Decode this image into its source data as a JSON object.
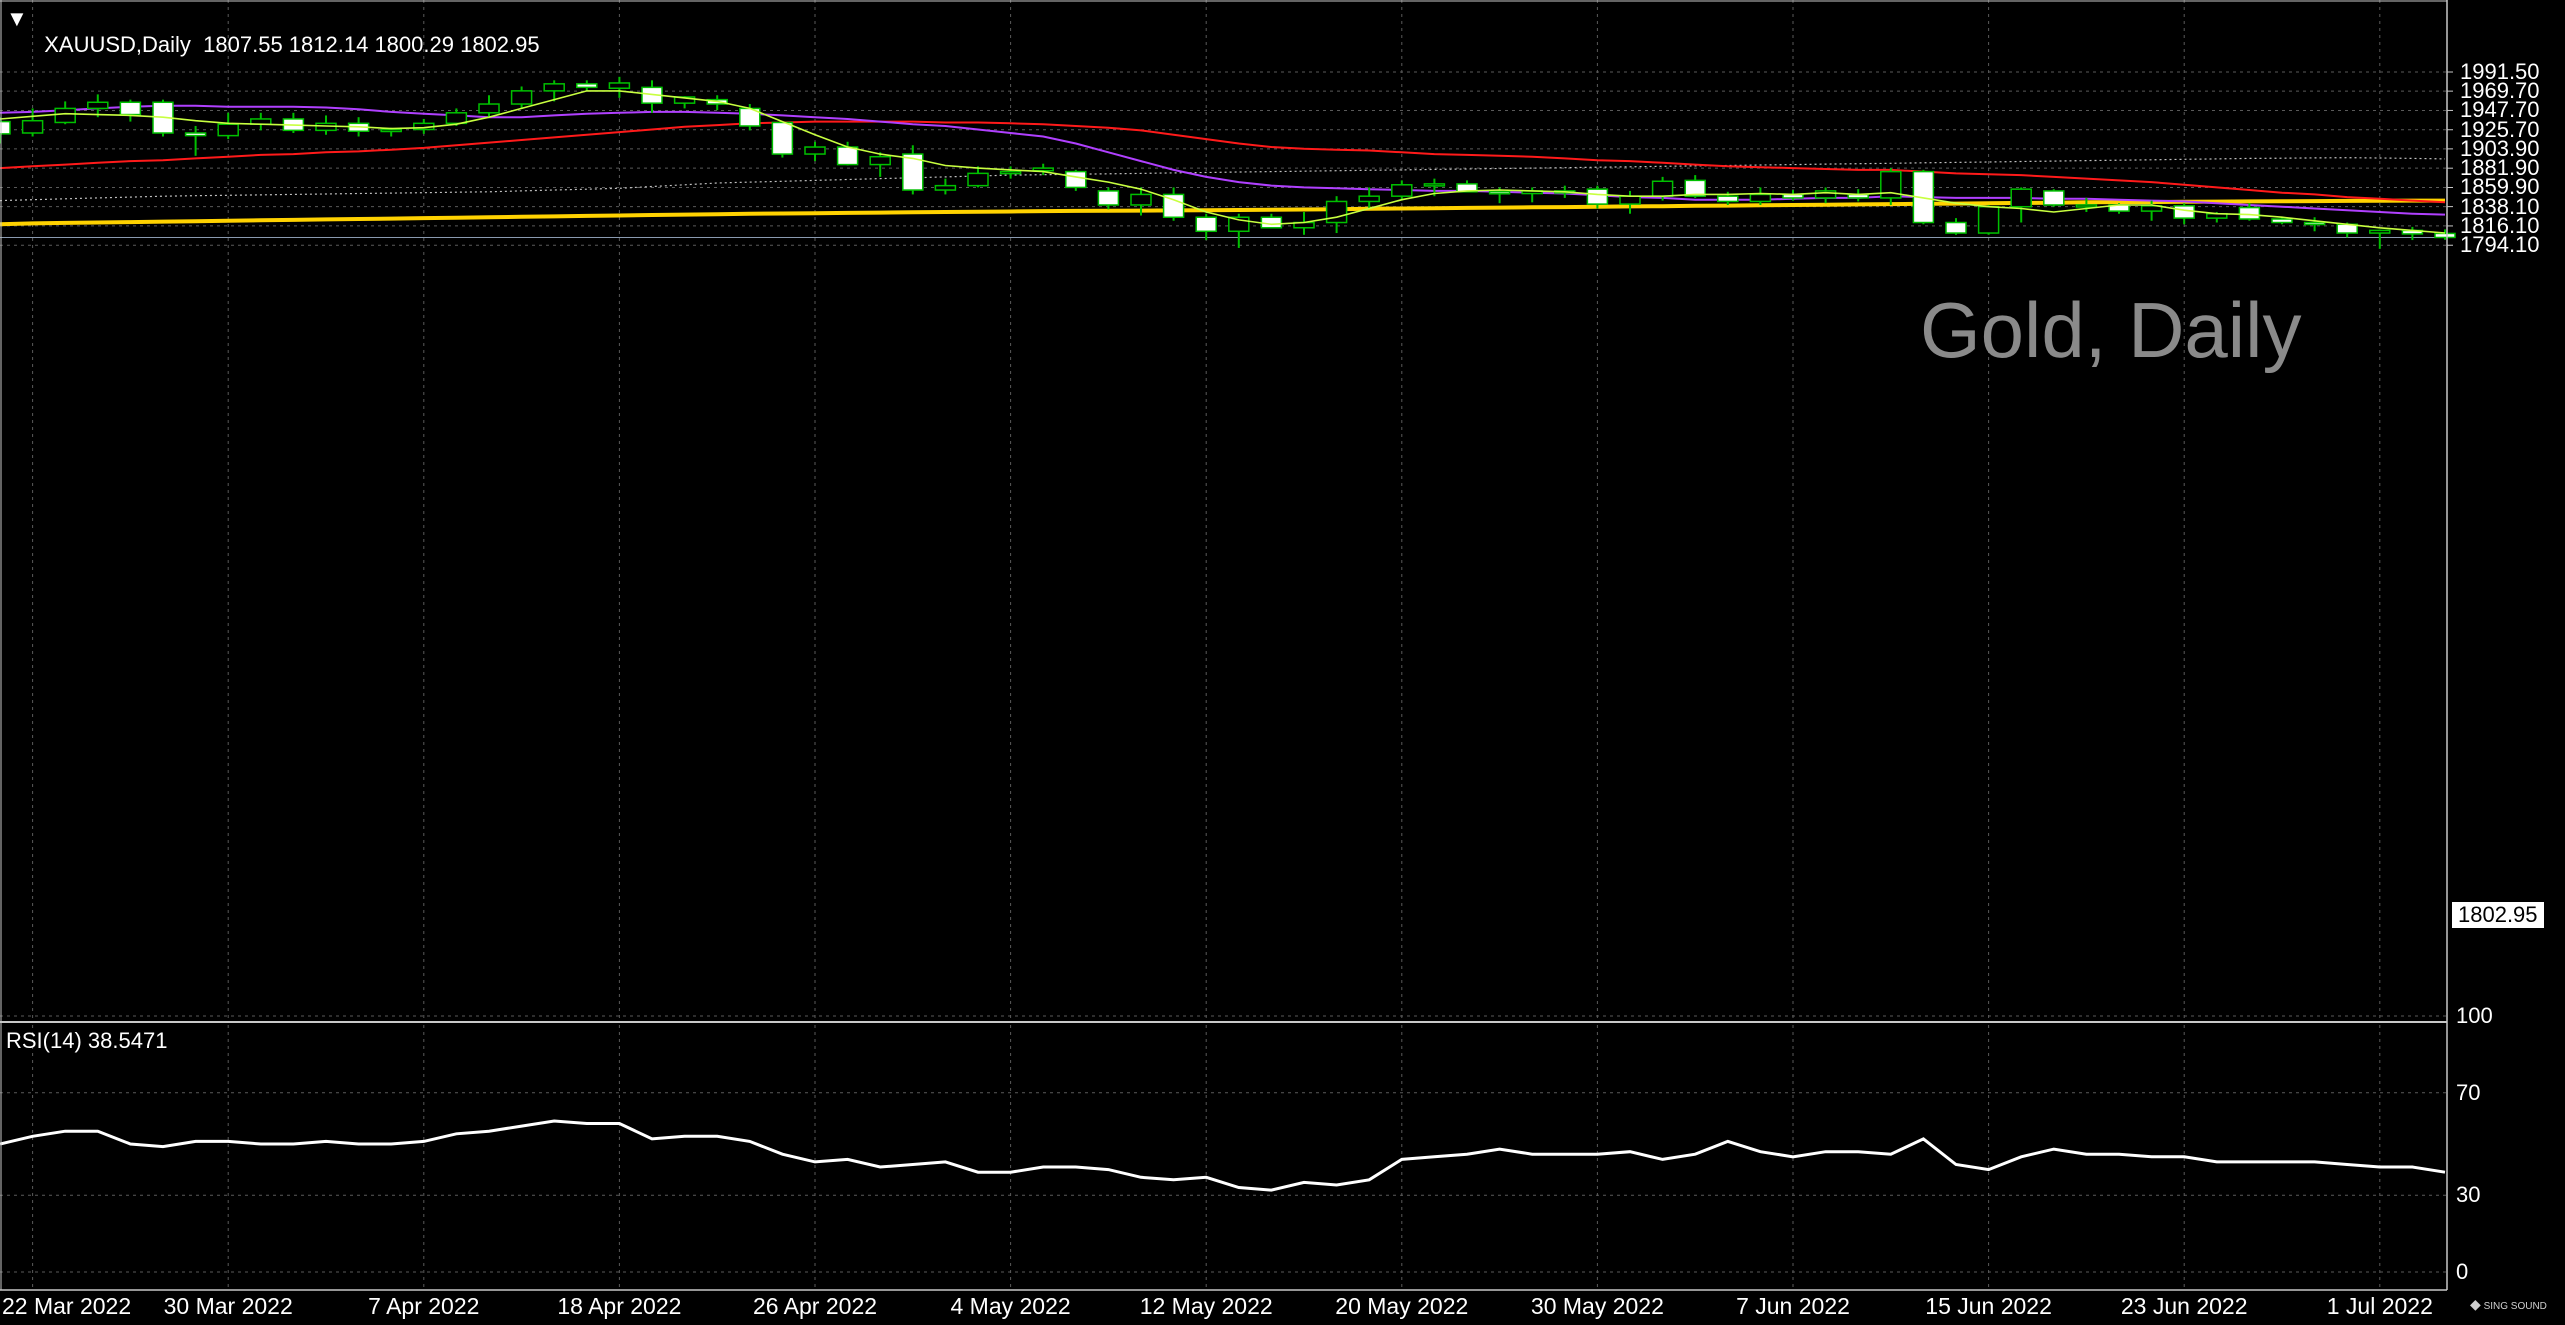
{
  "header": {
    "symbol": "XAUUSD,Daily",
    "ohlc": "1807.55 1812.14 1800.29 1802.95"
  },
  "watermark": "Gold, Daily",
  "rsi_header": "RSI(14) 38.5471",
  "last_price_label": "1802.95",
  "logo_text": "SING SOUND",
  "colors": {
    "background": "#000000",
    "grid": "#5a5a5a",
    "bull_candle": "#00c000",
    "bear_candle": "#ffffff",
    "ma_fast": "#c8ff40",
    "ma_mid": "#b040ff",
    "ma_slow": "#ff1a1a",
    "ma_long": "#ffd200",
    "ma_dotted": "#c0c0c0",
    "rsi": "#ffffff"
  },
  "chart_data": [
    {
      "type": "candlestick",
      "title": "XAUUSD,Daily",
      "y_ticks": [
        "1991.50",
        "1969.70",
        "1947.70",
        "1925.70",
        "1903.90",
        "1881.90",
        "1859.90",
        "1838.10",
        "1816.10",
        "1794.10"
      ],
      "x_ticks": [
        {
          "label": "22 Mar 2022",
          "bar": 1
        },
        {
          "label": "30 Mar 2022",
          "bar": 7
        },
        {
          "label": "7 Apr 2022",
          "bar": 13
        },
        {
          "label": "18 Apr 2022",
          "bar": 19
        },
        {
          "label": "26 Apr 2022",
          "bar": 25
        },
        {
          "label": "4 May 2022",
          "bar": 31
        },
        {
          "label": "12 May 2022",
          "bar": 37
        },
        {
          "label": "20 May 2022",
          "bar": 43
        },
        {
          "label": "30 May 2022",
          "bar": 49
        },
        {
          "label": "7 Jun 2022",
          "bar": 55
        },
        {
          "label": "15 Jun 2022",
          "bar": 61
        },
        {
          "label": "23 Jun 2022",
          "bar": 67
        },
        {
          "label": "1 Jul 2022",
          "bar": 73
        }
      ],
      "ohlc": [
        [
          1935,
          1940,
          1910,
          1921
        ],
        [
          1922,
          1950,
          1918,
          1936
        ],
        [
          1934,
          1958,
          1932,
          1950
        ],
        [
          1950,
          1966,
          1940,
          1957
        ],
        [
          1957,
          1960,
          1935,
          1943
        ],
        [
          1957,
          1960,
          1918,
          1922
        ],
        [
          1922,
          1930,
          1896,
          1919
        ],
        [
          1919,
          1945,
          1915,
          1932
        ],
        [
          1932,
          1945,
          1925,
          1938
        ],
        [
          1938,
          1945,
          1922,
          1925
        ],
        [
          1925,
          1942,
          1920,
          1933
        ],
        [
          1933,
          1940,
          1918,
          1924
        ],
        [
          1924,
          1928,
          1918,
          1926
        ],
        [
          1926,
          1938,
          1921,
          1933
        ],
        [
          1933,
          1950,
          1930,
          1945
        ],
        [
          1945,
          1965,
          1940,
          1955
        ],
        [
          1955,
          1975,
          1950,
          1970
        ],
        [
          1970,
          1982,
          1958,
          1978
        ],
        [
          1978,
          1982,
          1970,
          1974
        ],
        [
          1973,
          1986,
          1962,
          1979
        ],
        [
          1974,
          1982,
          1945,
          1956
        ],
        [
          1956,
          1964,
          1950,
          1963
        ],
        [
          1960,
          1965,
          1948,
          1955
        ],
        [
          1950,
          1955,
          1925,
          1930
        ],
        [
          1934,
          1935,
          1894,
          1898
        ],
        [
          1898,
          1912,
          1890,
          1906
        ],
        [
          1906,
          1912,
          1885,
          1886
        ],
        [
          1886,
          1900,
          1872,
          1895
        ],
        [
          1898,
          1908,
          1852,
          1857
        ],
        [
          1857,
          1870,
          1852,
          1862
        ],
        [
          1862,
          1884,
          1860,
          1876
        ],
        [
          1876,
          1884,
          1870,
          1878
        ],
        [
          1879,
          1887,
          1874,
          1882
        ],
        [
          1878,
          1880,
          1856,
          1860
        ],
        [
          1856,
          1860,
          1835,
          1840
        ],
        [
          1840,
          1860,
          1828,
          1852
        ],
        [
          1852,
          1860,
          1822,
          1826
        ],
        [
          1826,
          1830,
          1800,
          1810
        ],
        [
          1810,
          1830,
          1791,
          1826
        ],
        [
          1826,
          1830,
          1814,
          1814
        ],
        [
          1814,
          1832,
          1806,
          1820
        ],
        [
          1820,
          1850,
          1808,
          1844
        ],
        [
          1844,
          1860,
          1836,
          1850
        ],
        [
          1850,
          1868,
          1845,
          1863
        ],
        [
          1863,
          1870,
          1850,
          1864
        ],
        [
          1864,
          1868,
          1855,
          1855
        ],
        [
          1855,
          1860,
          1842,
          1853
        ],
        [
          1853,
          1860,
          1843,
          1856
        ],
        [
          1856,
          1862,
          1848,
          1855
        ],
        [
          1858,
          1862,
          1836,
          1841
        ],
        [
          1841,
          1856,
          1830,
          1850
        ],
        [
          1850,
          1872,
          1845,
          1867
        ],
        [
          1868,
          1874,
          1848,
          1850
        ],
        [
          1850,
          1855,
          1840,
          1844
        ],
        [
          1844,
          1860,
          1840,
          1852
        ],
        [
          1852,
          1857,
          1845,
          1848
        ],
        [
          1848,
          1860,
          1842,
          1856
        ],
        [
          1852,
          1858,
          1844,
          1848
        ],
        [
          1848,
          1882,
          1840,
          1878
        ],
        [
          1878,
          1880,
          1818,
          1820
        ],
        [
          1820,
          1825,
          1806,
          1808
        ],
        [
          1808,
          1840,
          1806,
          1838
        ],
        [
          1838,
          1860,
          1820,
          1858
        ],
        [
          1856,
          1858,
          1838,
          1840
        ],
        [
          1838,
          1848,
          1832,
          1840
        ],
        [
          1840,
          1842,
          1830,
          1833
        ],
        [
          1833,
          1845,
          1822,
          1839
        ],
        [
          1839,
          1842,
          1818,
          1825
        ],
        [
          1825,
          1832,
          1820,
          1830
        ],
        [
          1837,
          1842,
          1822,
          1824
        ],
        [
          1824,
          1826,
          1818,
          1820
        ],
        [
          1820,
          1826,
          1810,
          1818
        ],
        [
          1818,
          1820,
          1803,
          1808
        ],
        [
          1808,
          1812,
          1790,
          1811
        ],
        [
          1811,
          1815,
          1800,
          1807
        ],
        [
          1807.55,
          1812.14,
          1800.29,
          1802.95
        ]
      ],
      "ma_fast": [
        1938,
        1941,
        1944,
        1943,
        1942,
        1940,
        1936,
        1933,
        1932,
        1931,
        1930,
        1929,
        1927,
        1928,
        1932,
        1940,
        1950,
        1960,
        1970,
        1970,
        1966,
        1962,
        1958,
        1950,
        1935,
        1920,
        1906,
        1898,
        1893,
        1885,
        1882,
        1880,
        1878,
        1872,
        1866,
        1858,
        1846,
        1832,
        1823,
        1818,
        1820,
        1826,
        1836,
        1846,
        1853,
        1856,
        1857,
        1856,
        1855,
        1852,
        1850,
        1850,
        1852,
        1852,
        1853,
        1852,
        1854,
        1852,
        1854,
        1848,
        1842,
        1838,
        1836,
        1832,
        1836,
        1840,
        1840,
        1834,
        1830,
        1829,
        1826,
        1822,
        1818,
        1814,
        1811,
        1808
      ],
      "ma_mid": [
        1945,
        1946,
        1948,
        1950,
        1952,
        1953,
        1953,
        1952,
        1952,
        1952,
        1951,
        1949,
        1946,
        1944,
        1942,
        1940,
        1940,
        1942,
        1944,
        1945,
        1946,
        1946,
        1945,
        1944,
        1942,
        1940,
        1938,
        1935,
        1932,
        1930,
        1926,
        1922,
        1918,
        1910,
        1900,
        1890,
        1880,
        1872,
        1866,
        1862,
        1860,
        1859,
        1858,
        1857,
        1856,
        1856,
        1855,
        1854,
        1853,
        1851,
        1849,
        1848,
        1846,
        1846,
        1846,
        1847,
        1848,
        1848,
        1850,
        1849,
        1848,
        1848,
        1848,
        1847,
        1847,
        1846,
        1845,
        1844,
        1842,
        1840,
        1838,
        1836,
        1834,
        1832,
        1830,
        1829
      ],
      "ma_slow": [
        1882,
        1884,
        1886,
        1888,
        1890,
        1891,
        1893,
        1895,
        1897,
        1898,
        1900,
        1901,
        1903,
        1905,
        1908,
        1911,
        1914,
        1917,
        1920,
        1923,
        1926,
        1929,
        1931,
        1933,
        1934,
        1935,
        1935,
        1935,
        1935,
        1934,
        1934,
        1933,
        1932,
        1930,
        1928,
        1925,
        1920,
        1915,
        1910,
        1906,
        1904,
        1903,
        1902,
        1900,
        1898,
        1897,
        1896,
        1895,
        1893,
        1891,
        1890,
        1888,
        1886,
        1884,
        1883,
        1882,
        1881,
        1880,
        1880,
        1878,
        1876,
        1875,
        1874,
        1872,
        1870,
        1868,
        1866,
        1863,
        1860,
        1857,
        1854,
        1852,
        1849,
        1847,
        1845,
        1843
      ],
      "ma_long": [
        1818,
        1819,
        1819.5,
        1820,
        1820.5,
        1821,
        1821.5,
        1822,
        1822.5,
        1823,
        1823.5,
        1824,
        1824.5,
        1825,
        1825.5,
        1826,
        1826.5,
        1827,
        1827.5,
        1828,
        1828.5,
        1829,
        1829.5,
        1830,
        1830.3,
        1830.6,
        1831,
        1831.3,
        1831.6,
        1832,
        1832.3,
        1832.6,
        1833,
        1833.2,
        1833.4,
        1833.6,
        1833.8,
        1834,
        1834.2,
        1834.5,
        1834.8,
        1835.2,
        1835.6,
        1836,
        1836.3,
        1836.6,
        1837,
        1837.3,
        1837.6,
        1838,
        1838.3,
        1838.6,
        1839,
        1839.3,
        1839.6,
        1840,
        1840.3,
        1840.6,
        1841,
        1841.3,
        1841.6,
        1842,
        1842.3,
        1842.6,
        1843,
        1843.2,
        1843.4,
        1843.6,
        1843.8,
        1844,
        1844.2,
        1844.4,
        1844.6,
        1844.8,
        1845,
        1845
      ],
      "ma_dotted": [
        1845,
        1846,
        1847,
        1848,
        1849,
        1850,
        1850.5,
        1851,
        1851.5,
        1852,
        1852.5,
        1853,
        1853.5,
        1854,
        1854.5,
        1855,
        1856,
        1857,
        1858,
        1859,
        1861,
        1863,
        1865,
        1866,
        1867,
        1868,
        1869,
        1870,
        1871,
        1872,
        1873,
        1874,
        1874.5,
        1875,
        1875.5,
        1876,
        1876.5,
        1877,
        1877.5,
        1878,
        1878.5,
        1879,
        1879.5,
        1880,
        1880.5,
        1881,
        1881.5,
        1882,
        1882.5,
        1883,
        1883.5,
        1884,
        1884.5,
        1885,
        1885.5,
        1886,
        1886.5,
        1887,
        1887.5,
        1888,
        1888.5,
        1889,
        1889.5,
        1890,
        1890.5,
        1891,
        1891.5,
        1892,
        1892.5,
        1893,
        1893.3,
        1893.6,
        1893.8,
        1893.5,
        1893,
        1892.5
      ]
    },
    {
      "type": "line",
      "title": "RSI(14) 38.5471",
      "y_ticks": [
        "100",
        "70",
        "30",
        "0"
      ],
      "ylim": [
        0,
        100
      ],
      "values": [
        50,
        53,
        55,
        55,
        50,
        49,
        51,
        51,
        50,
        50,
        51,
        50,
        50,
        51,
        54,
        55,
        57,
        59,
        58,
        58,
        52,
        53,
        53,
        51,
        46,
        43,
        44,
        41,
        42,
        43,
        39,
        39,
        41,
        41,
        40,
        37,
        36,
        37,
        33,
        32,
        35,
        34,
        36,
        44,
        45,
        46,
        48,
        46,
        46,
        46,
        47,
        44,
        46,
        51,
        47,
        45,
        47,
        47,
        46,
        52,
        42,
        40,
        45,
        48,
        46,
        46,
        45,
        45,
        43,
        43,
        43,
        43,
        42,
        41,
        41,
        39
      ]
    }
  ]
}
